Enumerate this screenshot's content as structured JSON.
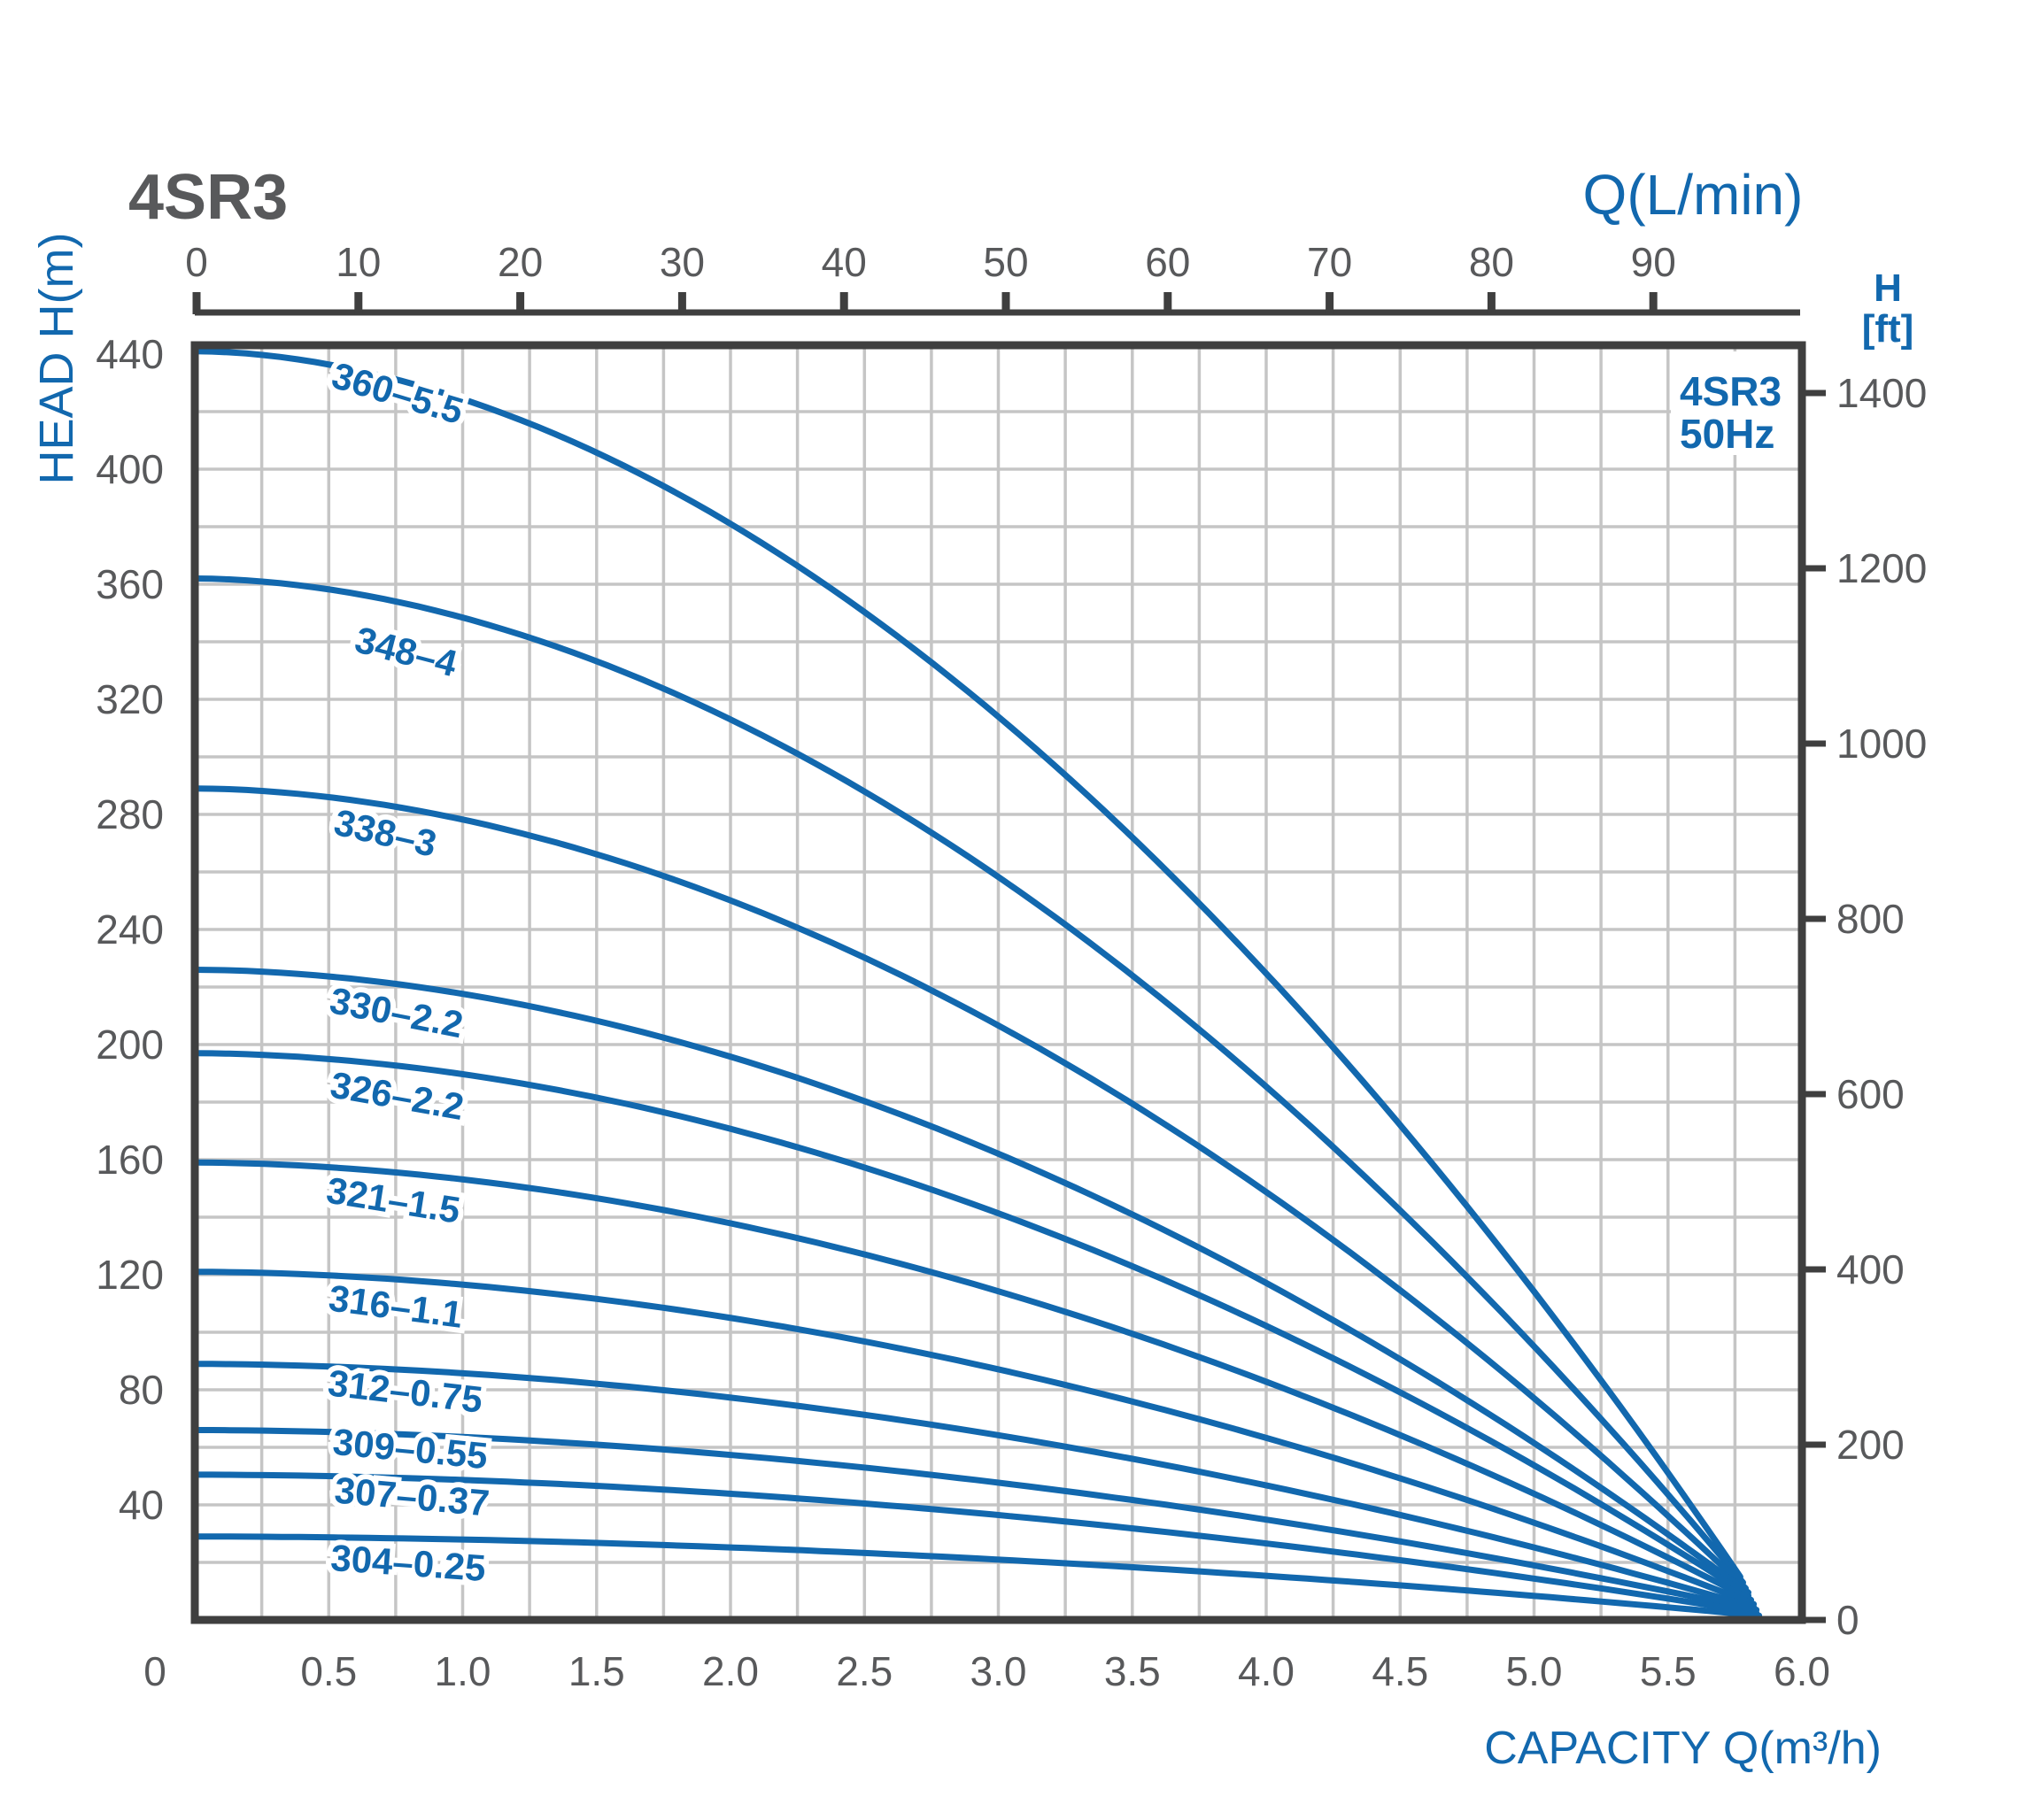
{
  "header": {
    "title": "4SR3"
  },
  "colors": {
    "curve_blue": "#1268ae",
    "text_gray": "#58595b",
    "grid_gray": "#c5c5c5",
    "axis_dark": "#3f3f3f"
  },
  "chart_data": {
    "type": "line",
    "title": "4SR3",
    "legend": {
      "line1": "4SR3",
      "line2": "50Hz"
    },
    "grid": "on",
    "top_axis": {
      "label": "Q(L/min)",
      "unit": "L/min",
      "ticks": [
        "0",
        "10",
        "20",
        "30",
        "40",
        "50",
        "60",
        "70",
        "80",
        "90"
      ],
      "range": [
        0,
        100
      ]
    },
    "bottom_axis": {
      "label": "CAPACITY Q(m³/h)",
      "unit": "m3/h",
      "ticks": [
        "0",
        "0.5",
        "1.0",
        "1.5",
        "2.0",
        "2.5",
        "3.0",
        "3.5",
        "4.0",
        "4.5",
        "5.0",
        "5.5",
        "6.0"
      ],
      "range": [
        0,
        6.0
      ],
      "minor_grid_step": 0.25
    },
    "left_axis": {
      "label": "HEAD H(m)",
      "unit": "m",
      "ticks": [
        "440",
        "400",
        "360",
        "320",
        "280",
        "240",
        "200",
        "160",
        "120",
        "80",
        "40"
      ],
      "range": [
        0,
        440
      ],
      "minor_grid_step_m": 20
    },
    "right_axis": {
      "label_line1": "H",
      "label_line2": "[ft]",
      "unit": "ft",
      "ticks": [
        "1400",
        "1200",
        "1000",
        "800",
        "600",
        "400",
        "200",
        "0"
      ],
      "range": [
        0,
        1400
      ]
    },
    "curve_exponent": 1.85,
    "series": [
      {
        "label": "360–5.5",
        "shutoff_head_m": 441,
        "end_q_m3h": 5.77,
        "end_head_m": 15.0,
        "label_cx": 445,
        "label_cy": 458,
        "label_angle": 16.5
      },
      {
        "label": "348–4",
        "shutoff_head_m": 362,
        "end_q_m3h": 5.78,
        "end_head_m": 13.0,
        "label_cx": 455,
        "label_cy": 750,
        "label_angle": 14.5
      },
      {
        "label": "338–3",
        "shutoff_head_m": 289,
        "end_q_m3h": 5.79,
        "end_head_m": 11.0,
        "label_cx": 432,
        "label_cy": 955,
        "label_angle": 13
      },
      {
        "label": "330–2.2",
        "shutoff_head_m": 226,
        "end_q_m3h": 5.8,
        "end_head_m": 9.5,
        "label_cx": 445,
        "label_cy": 1158,
        "label_angle": 11
      },
      {
        "label": "326–2.2",
        "shutoff_head_m": 197,
        "end_q_m3h": 5.8,
        "end_head_m": 8.5,
        "label_cx": 446,
        "label_cy": 1252,
        "label_angle": 10
      },
      {
        "label": "321–1.5",
        "shutoff_head_m": 159,
        "end_q_m3h": 5.81,
        "end_head_m": 7.0,
        "label_cx": 442,
        "label_cy": 1370,
        "label_angle": 9
      },
      {
        "label": "316–1.1",
        "shutoff_head_m": 121,
        "end_q_m3h": 5.82,
        "end_head_m": 5.5,
        "label_cx": 445,
        "label_cy": 1490,
        "label_angle": 7.5
      },
      {
        "label": "312–0.75",
        "shutoff_head_m": 89,
        "end_q_m3h": 5.82,
        "end_head_m": 4.5,
        "label_cx": 456,
        "label_cy": 1586,
        "label_angle": 6.5
      },
      {
        "label": "309–0.55",
        "shutoff_head_m": 66,
        "end_q_m3h": 5.83,
        "end_head_m": 3.5,
        "label_cx": 462,
        "label_cy": 1651,
        "label_angle": 5.5
      },
      {
        "label": "307–0.37",
        "shutoff_head_m": 50.5,
        "end_q_m3h": 5.83,
        "end_head_m": 2.5,
        "label_cx": 464,
        "label_cy": 1705,
        "label_angle": 5
      },
      {
        "label": "304–0.25",
        "shutoff_head_m": 29,
        "end_q_m3h": 5.84,
        "end_head_m": 1.5,
        "label_cx": 460,
        "label_cy": 1780,
        "label_angle": 4
      }
    ]
  }
}
